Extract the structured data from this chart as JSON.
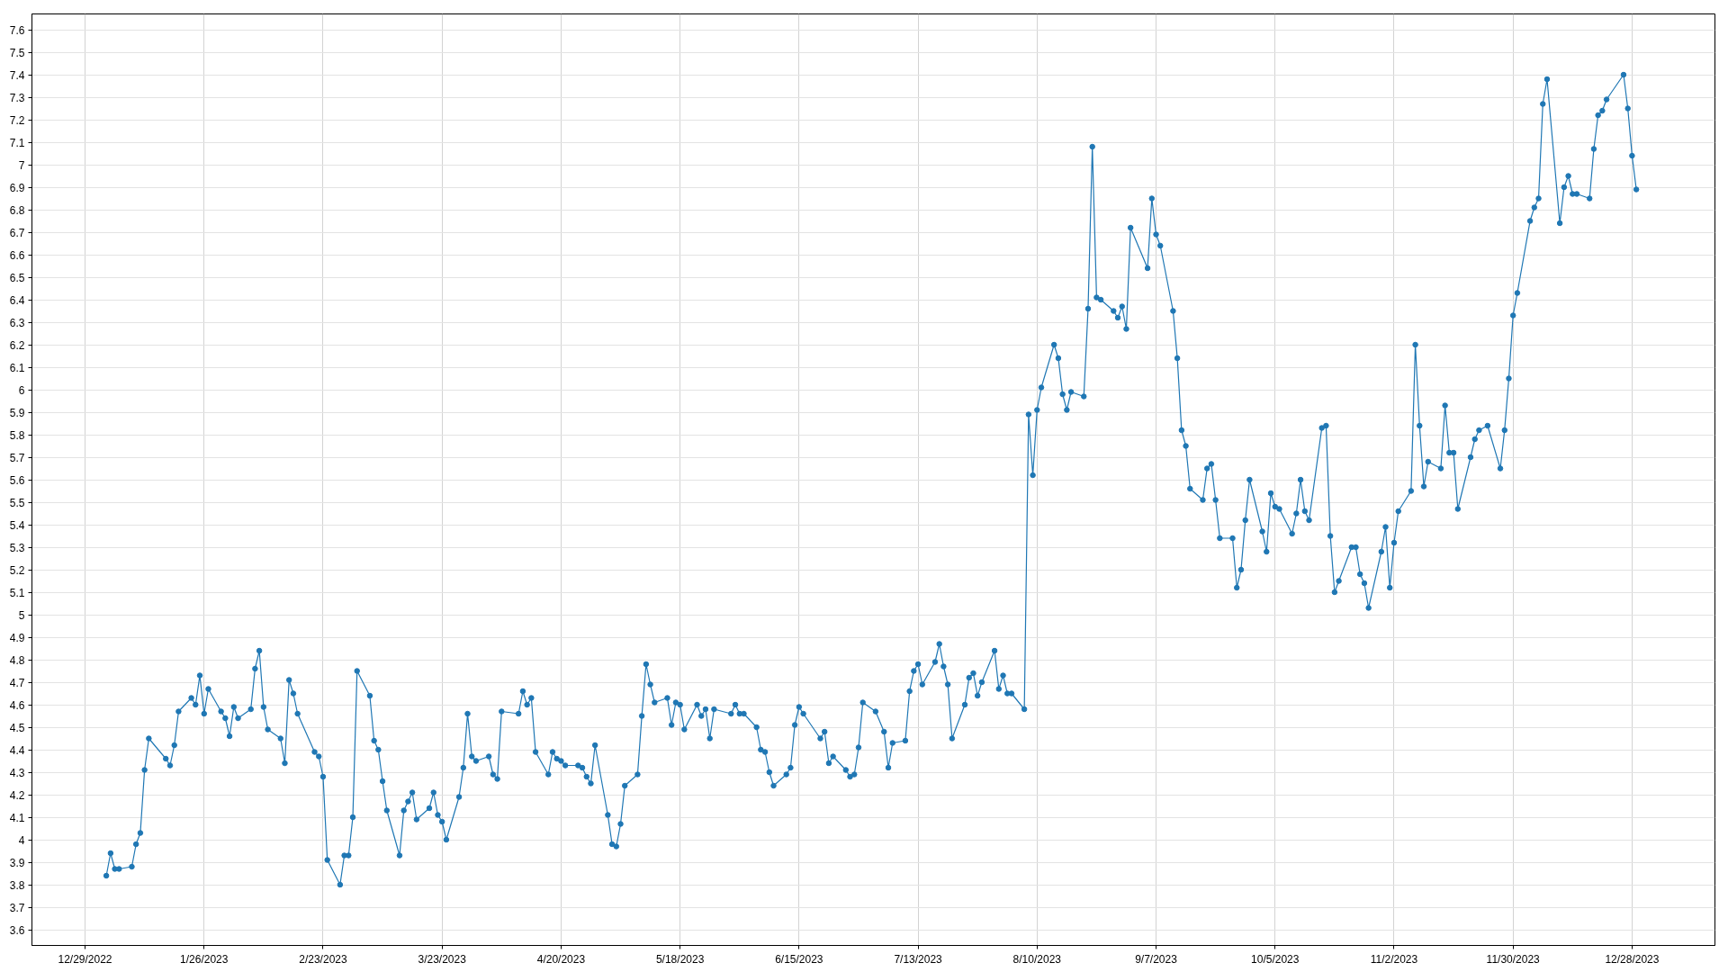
{
  "chart_data": {
    "type": "line",
    "x": [
      "2023-01-03",
      "2023-01-04",
      "2023-01-05",
      "2023-01-06",
      "2023-01-09",
      "2023-01-10",
      "2023-01-11",
      "2023-01-12",
      "2023-01-13",
      "2023-01-17",
      "2023-01-18",
      "2023-01-19",
      "2023-01-20",
      "2023-01-23",
      "2023-01-24",
      "2023-01-25",
      "2023-01-26",
      "2023-01-27",
      "2023-01-30",
      "2023-01-31",
      "2023-02-01",
      "2023-02-02",
      "2023-02-03",
      "2023-02-06",
      "2023-02-07",
      "2023-02-08",
      "2023-02-09",
      "2023-02-10",
      "2023-02-13",
      "2023-02-14",
      "2023-02-15",
      "2023-02-16",
      "2023-02-17",
      "2023-02-21",
      "2023-02-22",
      "2023-02-23",
      "2023-02-24",
      "2023-02-27",
      "2023-02-28",
      "2023-03-01",
      "2023-03-02",
      "2023-03-03",
      "2023-03-06",
      "2023-03-07",
      "2023-03-08",
      "2023-03-09",
      "2023-03-10",
      "2023-03-13",
      "2023-03-14",
      "2023-03-15",
      "2023-03-16",
      "2023-03-17",
      "2023-03-20",
      "2023-03-21",
      "2023-03-22",
      "2023-03-23",
      "2023-03-24",
      "2023-03-27",
      "2023-03-28",
      "2023-03-29",
      "2023-03-30",
      "2023-03-31",
      "2023-04-03",
      "2023-04-04",
      "2023-04-05",
      "2023-04-06",
      "2023-04-10",
      "2023-04-11",
      "2023-04-12",
      "2023-04-13",
      "2023-04-14",
      "2023-04-17",
      "2023-04-18",
      "2023-04-19",
      "2023-04-20",
      "2023-04-21",
      "2023-04-24",
      "2023-04-25",
      "2023-04-26",
      "2023-04-27",
      "2023-04-28",
      "2023-05-01",
      "2023-05-02",
      "2023-05-03",
      "2023-05-04",
      "2023-05-05",
      "2023-05-08",
      "2023-05-09",
      "2023-05-10",
      "2023-05-11",
      "2023-05-12",
      "2023-05-15",
      "2023-05-16",
      "2023-05-17",
      "2023-05-18",
      "2023-05-19",
      "2023-05-22",
      "2023-05-23",
      "2023-05-24",
      "2023-05-25",
      "2023-05-26",
      "2023-05-30",
      "2023-05-31",
      "2023-06-01",
      "2023-06-02",
      "2023-06-05",
      "2023-06-06",
      "2023-06-07",
      "2023-06-08",
      "2023-06-09",
      "2023-06-12",
      "2023-06-13",
      "2023-06-14",
      "2023-06-15",
      "2023-06-16",
      "2023-06-20",
      "2023-06-21",
      "2023-06-22",
      "2023-06-23",
      "2023-06-26",
      "2023-06-27",
      "2023-06-28",
      "2023-06-29",
      "2023-06-30",
      "2023-07-03",
      "2023-07-05",
      "2023-07-06",
      "2023-07-07",
      "2023-07-10",
      "2023-07-11",
      "2023-07-12",
      "2023-07-13",
      "2023-07-14",
      "2023-07-17",
      "2023-07-18",
      "2023-07-19",
      "2023-07-20",
      "2023-07-21",
      "2023-07-24",
      "2023-07-25",
      "2023-07-26",
      "2023-07-27",
      "2023-07-28",
      "2023-07-31",
      "2023-08-01",
      "2023-08-02",
      "2023-08-03",
      "2023-08-04",
      "2023-08-07",
      "2023-08-08",
      "2023-08-09",
      "2023-08-10",
      "2023-08-11",
      "2023-08-14",
      "2023-08-15",
      "2023-08-16",
      "2023-08-17",
      "2023-08-18",
      "2023-08-21",
      "2023-08-22",
      "2023-08-23",
      "2023-08-24",
      "2023-08-25",
      "2023-08-28",
      "2023-08-29",
      "2023-08-30",
      "2023-08-31",
      "2023-09-01",
      "2023-09-05",
      "2023-09-06",
      "2023-09-07",
      "2023-09-08",
      "2023-09-11",
      "2023-09-12",
      "2023-09-13",
      "2023-09-14",
      "2023-09-15",
      "2023-09-18",
      "2023-09-19",
      "2023-09-20",
      "2023-09-21",
      "2023-09-22",
      "2023-09-25",
      "2023-09-26",
      "2023-09-27",
      "2023-09-28",
      "2023-09-29",
      "2023-10-02",
      "2023-10-03",
      "2023-10-04",
      "2023-10-05",
      "2023-10-06",
      "2023-10-09",
      "2023-10-10",
      "2023-10-11",
      "2023-10-12",
      "2023-10-13",
      "2023-10-16",
      "2023-10-17",
      "2023-10-18",
      "2023-10-19",
      "2023-10-20",
      "2023-10-23",
      "2023-10-24",
      "2023-10-25",
      "2023-10-26",
      "2023-10-27",
      "2023-10-30",
      "2023-10-31",
      "2023-11-01",
      "2023-11-02",
      "2023-11-03",
      "2023-11-06",
      "2023-11-07",
      "2023-11-08",
      "2023-11-09",
      "2023-11-10",
      "2023-11-13",
      "2023-11-14",
      "2023-11-15",
      "2023-11-16",
      "2023-11-17",
      "2023-11-20",
      "2023-11-21",
      "2023-11-22",
      "2023-11-24",
      "2023-11-27",
      "2023-11-28",
      "2023-11-29",
      "2023-11-30",
      "2023-12-01",
      "2023-12-04",
      "2023-12-05",
      "2023-12-06",
      "2023-12-07",
      "2023-12-08",
      "2023-12-11",
      "2023-12-12",
      "2023-12-13",
      "2023-12-14",
      "2023-12-15",
      "2023-12-18",
      "2023-12-19",
      "2023-12-20",
      "2023-12-21",
      "2023-12-22",
      "2023-12-26",
      "2023-12-27",
      "2023-12-28",
      "2023-12-29"
    ],
    "series": [
      {
        "color": "#1f77b4",
        "values": [
          3.84,
          3.94,
          3.87,
          3.87,
          3.88,
          3.98,
          4.03,
          4.31,
          4.45,
          4.36,
          4.33,
          4.42,
          4.57,
          4.63,
          4.6,
          4.73,
          4.56,
          4.67,
          4.57,
          4.54,
          4.46,
          4.59,
          4.54,
          4.58,
          4.76,
          4.84,
          4.59,
          4.49,
          4.45,
          4.34,
          4.71,
          4.65,
          4.56,
          4.39,
          4.37,
          4.28,
          3.91,
          3.8,
          3.93,
          3.93,
          4.1,
          4.75,
          4.64,
          4.44,
          4.4,
          4.26,
          4.13,
          3.93,
          4.13,
          4.17,
          4.21,
          4.09,
          4.14,
          4.21,
          4.11,
          4.08,
          4.0,
          4.19,
          4.32,
          4.56,
          4.37,
          4.35,
          4.37,
          4.29,
          4.27,
          4.57,
          4.56,
          4.66,
          4.6,
          4.63,
          4.39,
          4.29,
          4.39,
          4.36,
          4.35,
          4.33,
          4.33,
          4.32,
          4.28,
          4.25,
          4.42,
          4.11,
          3.98,
          3.97,
          4.07,
          4.24,
          4.29,
          4.55,
          4.78,
          4.69,
          4.61,
          4.63,
          4.51,
          4.61,
          4.6,
          4.49,
          4.6,
          4.55,
          4.58,
          4.45,
          4.58,
          4.56,
          4.6,
          4.56,
          4.56,
          4.5,
          4.4,
          4.39,
          4.3,
          4.24,
          4.29,
          4.32,
          4.51,
          4.59,
          4.56,
          4.45,
          4.48,
          4.34,
          4.37,
          4.31,
          4.28,
          4.29,
          4.41,
          4.61,
          4.57,
          4.48,
          4.32,
          4.43,
          4.44,
          4.66,
          4.75,
          4.78,
          4.69,
          4.79,
          4.87,
          4.77,
          4.69,
          4.45,
          4.6,
          4.72,
          4.74,
          4.64,
          4.7,
          4.84,
          4.67,
          4.73,
          4.65,
          4.65,
          4.58,
          5.89,
          5.62,
          5.91,
          6.01,
          6.2,
          6.14,
          5.98,
          5.91,
          5.99,
          5.97,
          6.36,
          7.08,
          6.41,
          6.4,
          6.35,
          6.32,
          6.37,
          6.27,
          6.72,
          6.54,
          6.85,
          6.69,
          6.64,
          6.35,
          6.14,
          5.82,
          5.75,
          5.56,
          5.51,
          5.65,
          5.67,
          5.51,
          5.34,
          5.34,
          5.12,
          5.2,
          5.42,
          5.6,
          5.37,
          5.28,
          5.54,
          5.48,
          5.47,
          5.36,
          5.45,
          5.6,
          5.46,
          5.42,
          5.83,
          5.84,
          5.35,
          5.1,
          5.15,
          5.3,
          5.3,
          5.18,
          5.14,
          5.03,
          5.28,
          5.39,
          5.12,
          5.32,
          5.46,
          5.55,
          6.2,
          5.84,
          5.57,
          5.68,
          5.65,
          5.93,
          5.72,
          5.72,
          5.47,
          5.7,
          5.78,
          5.82,
          5.84,
          5.65,
          5.82,
          6.05,
          6.33,
          6.43,
          6.75,
          6.81,
          6.85,
          7.27,
          7.38,
          6.74,
          6.9,
          6.95,
          6.87,
          6.87,
          6.85,
          7.07,
          7.22,
          7.24,
          7.29,
          7.4,
          7.25,
          7.04,
          6.89
        ]
      }
    ],
    "xlim": [
      "2022-12-16T12:00",
      "2024-01-16T12:00"
    ],
    "ylim": [
      3.53,
      7.67
    ],
    "xticks": [
      {
        "value": "2022-12-29",
        "label": "12/29/2022"
      },
      {
        "value": "2023-01-26",
        "label": "1/26/2023"
      },
      {
        "value": "2023-02-23",
        "label": "2/23/2023"
      },
      {
        "value": "2023-03-23",
        "label": "3/23/2023"
      },
      {
        "value": "2023-04-20",
        "label": "4/20/2023"
      },
      {
        "value": "2023-05-18",
        "label": "5/18/2023"
      },
      {
        "value": "2023-06-15",
        "label": "6/15/2023"
      },
      {
        "value": "2023-07-13",
        "label": "7/13/2023"
      },
      {
        "value": "2023-08-10",
        "label": "8/10/2023"
      },
      {
        "value": "2023-09-07",
        "label": "9/7/2023"
      },
      {
        "value": "2023-10-05",
        "label": "10/5/2023"
      },
      {
        "value": "2023-11-02",
        "label": "11/2/2023"
      },
      {
        "value": "2023-11-30",
        "label": "11/30/2023"
      },
      {
        "value": "2023-12-28",
        "label": "12/28/2023"
      }
    ],
    "yticks": [
      3.6,
      3.7,
      3.8,
      3.9,
      4,
      4.1,
      4.2,
      4.3,
      4.4,
      4.5,
      4.6,
      4.7,
      4.8,
      4.9,
      5,
      5.1,
      5.2,
      5.3,
      5.4,
      5.5,
      5.6,
      5.7,
      5.8,
      5.9,
      6,
      6.1,
      6.2,
      6.3,
      6.4,
      6.5,
      6.6,
      6.7,
      6.8,
      6.9,
      7,
      7.1,
      7.2,
      7.3,
      7.4,
      7.5,
      7.6
    ],
    "grid": true,
    "marker": "circle",
    "line_style": "solid"
  }
}
